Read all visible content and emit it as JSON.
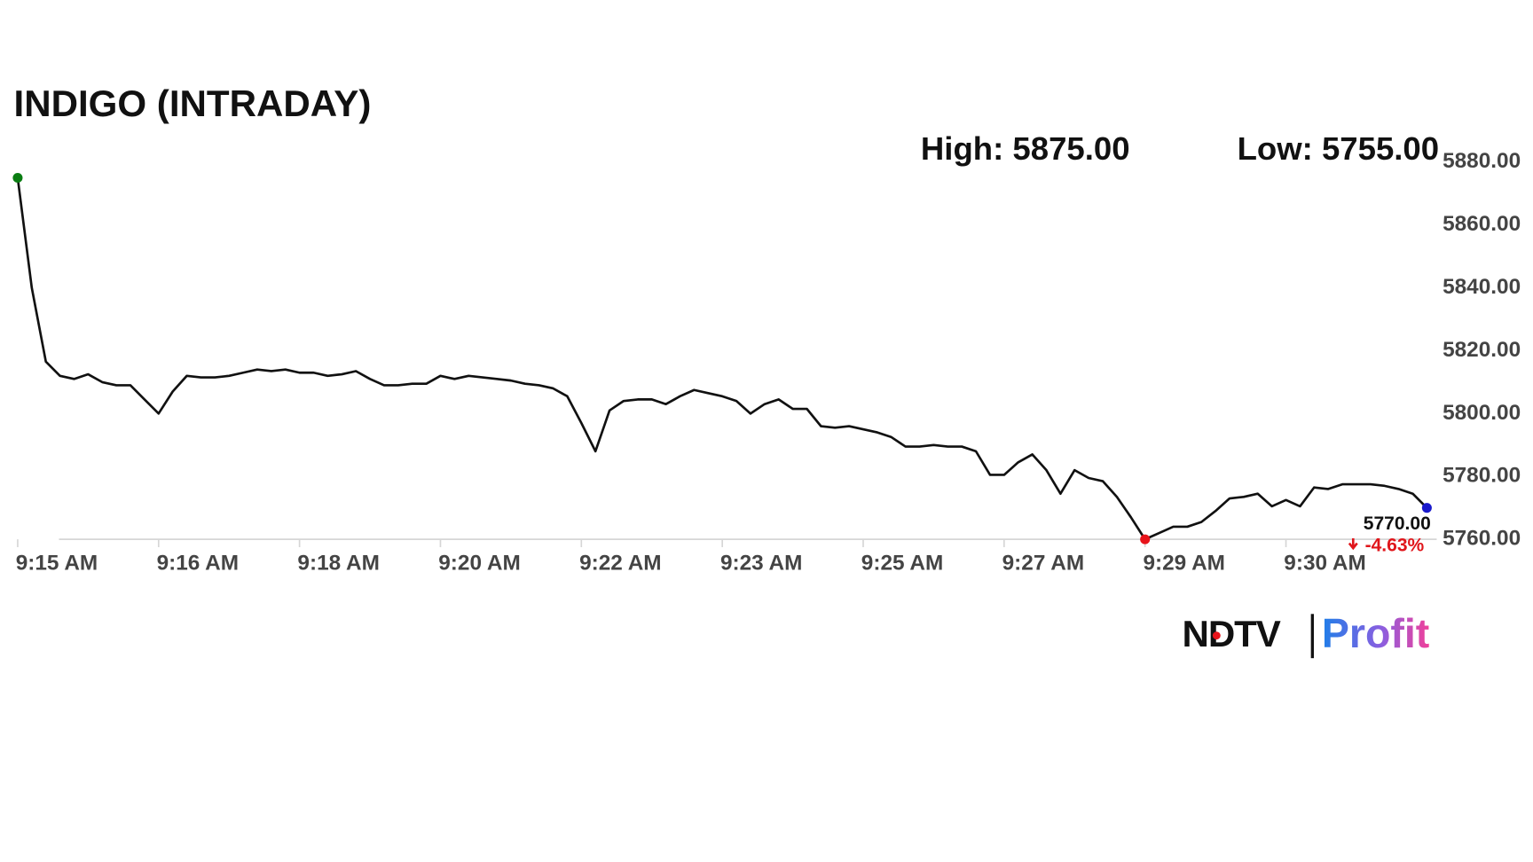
{
  "chart_data": {
    "type": "line",
    "title": "INDIGO (INTRADAY)",
    "annotations": [
      "High: 5875.00",
      "Low: 5755.00"
    ],
    "last_value_label": "5770.00",
    "change_label": "-4.63%",
    "categories": [
      "9:15 AM",
      null,
      null,
      null,
      null,
      null,
      null,
      null,
      null,
      null,
      "9:16 AM",
      null,
      null,
      null,
      null,
      null,
      null,
      null,
      null,
      null,
      "9:18 AM",
      null,
      null,
      null,
      null,
      null,
      null,
      null,
      null,
      null,
      "9:20 AM",
      null,
      null,
      null,
      null,
      null,
      null,
      null,
      null,
      null,
      "9:22 AM",
      null,
      null,
      null,
      null,
      null,
      null,
      null,
      null,
      null,
      "9:23 AM",
      null,
      null,
      null,
      null,
      null,
      null,
      null,
      null,
      null,
      "9:25 AM",
      null,
      null,
      null,
      null,
      null,
      null,
      null,
      null,
      null,
      "9:27 AM",
      null,
      null,
      null,
      null,
      null,
      null,
      null,
      null,
      null,
      "9:29 AM",
      null,
      null,
      null,
      null,
      null,
      null,
      null,
      null,
      null,
      "9:30 AM",
      null,
      null,
      null,
      null,
      null,
      null,
      null,
      null,
      null,
      null
    ],
    "values": [
      5875,
      5840,
      5816.5,
      5812,
      5811,
      5812.5,
      5810,
      5809,
      5809,
      5804.5,
      5800,
      5807,
      5812,
      5811.5,
      5811.5,
      5812,
      5813,
      5814,
      5813.5,
      5814,
      5813,
      5813,
      5812,
      5812.5,
      5813.5,
      5811,
      5809,
      5809,
      5809.5,
      5809.5,
      5812,
      5811,
      5812,
      5811.5,
      5811,
      5810.5,
      5809.5,
      5809,
      5808,
      5805.5,
      5797,
      5788,
      5801,
      5804,
      5804.5,
      5804.5,
      5803,
      5805.5,
      5807.5,
      5806.5,
      5805.5,
      5804,
      5800,
      5803,
      5804.5,
      5801.5,
      5801.5,
      5796,
      5795.5,
      5796,
      5795,
      5794,
      5792.5,
      5789.5,
      5789.5,
      5790,
      5789.5,
      5789.5,
      5788,
      5780.5,
      5780.5,
      5784.5,
      5787,
      5782,
      5774.5,
      5782,
      5779.5,
      5778.5,
      5773.5,
      5767,
      5760,
      5762,
      5764,
      5764,
      5765.5,
      5769,
      5773,
      5773.5,
      5774.5,
      5770.5,
      5772.5,
      5770.5,
      5776.5,
      5776,
      5777.5,
      5777.5,
      5777.5,
      5777,
      5776,
      5774.5,
      5770
    ],
    "color": "#111111",
    "start_color": "#0a7d12",
    "low_color": "#e8141b",
    "end_color": "#1a1acc",
    "ylim": [
      5760,
      5880
    ],
    "yticks": [
      {
        "value": 5760,
        "label": "5760.00"
      },
      {
        "value": 5780,
        "label": "5780.00"
      },
      {
        "value": 5800,
        "label": "5800.00"
      },
      {
        "value": 5820,
        "label": "5820.00"
      },
      {
        "value": 5840,
        "label": "5840.00"
      },
      {
        "value": 5860,
        "label": "5860.00"
      },
      {
        "value": 5880,
        "label": "5880.00"
      }
    ],
    "grid": false
  },
  "logo": {
    "brand": "NDTV",
    "product": "Profit"
  }
}
